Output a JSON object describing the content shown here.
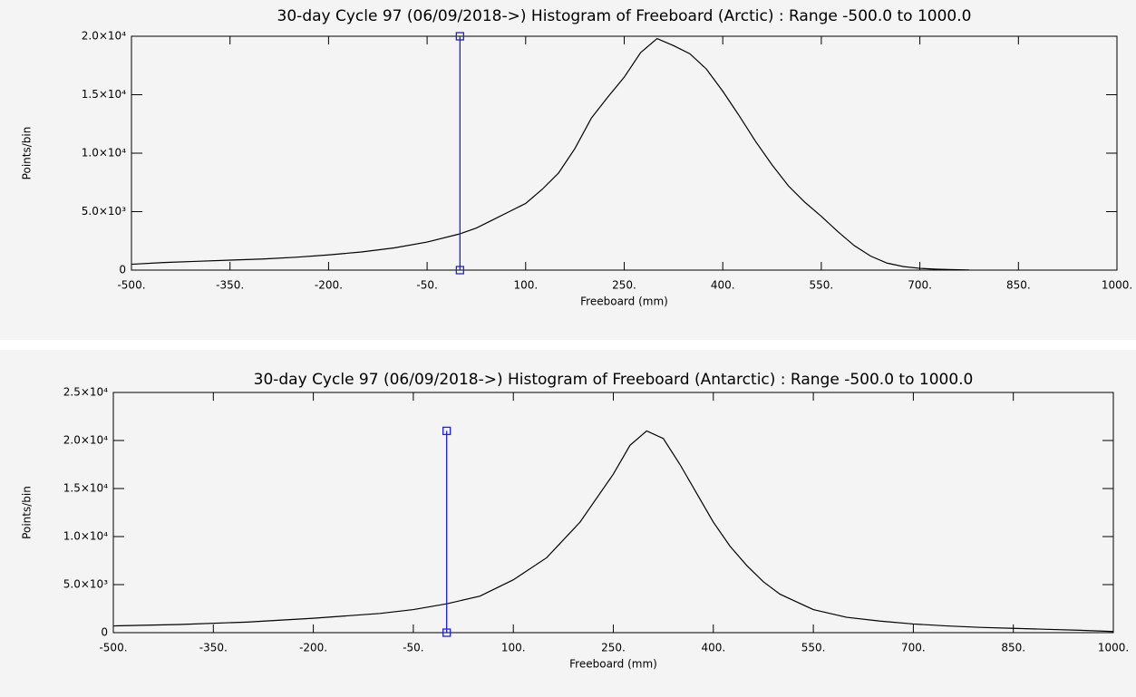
{
  "chart_data": [
    {
      "type": "line",
      "title": "30-day Cycle 97 (06/09/2018->) Histogram of Freeboard (Arctic) :  Range -500.0 to 1000.0",
      "x_label": "Freeboard (mm)",
      "y_label": "Points/bin",
      "x": [
        -500,
        -450,
        -400,
        -350,
        -300,
        -250,
        -200,
        -150,
        -100,
        -50,
        0,
        25,
        50,
        75,
        100,
        125,
        150,
        175,
        200,
        225,
        250,
        275,
        300,
        325,
        350,
        375,
        400,
        425,
        450,
        475,
        500,
        525,
        550,
        575,
        600,
        625,
        650,
        675,
        700,
        725,
        750,
        775
      ],
      "values": [
        500,
        650,
        750,
        850,
        950,
        1100,
        1300,
        1550,
        1900,
        2400,
        3100,
        3600,
        4300,
        5000,
        5700,
        6900,
        8300,
        10400,
        13000,
        14800,
        16500,
        18600,
        19800,
        19200,
        18500,
        17200,
        15300,
        13200,
        11000,
        9000,
        7200,
        5800,
        4600,
        3300,
        2100,
        1200,
        600,
        300,
        150,
        80,
        40,
        15
      ],
      "color": "#000000",
      "xlim": [
        -500,
        1000
      ],
      "xticks": [
        {
          "value": -500,
          "label": "-500."
        },
        {
          "value": -350,
          "label": "-350."
        },
        {
          "value": -200,
          "label": "-200."
        },
        {
          "value": -50,
          "label": "-50."
        },
        {
          "value": 100,
          "label": "100."
        },
        {
          "value": 250,
          "label": "250."
        },
        {
          "value": 400,
          "label": "400."
        },
        {
          "value": 550,
          "label": "550."
        },
        {
          "value": 700,
          "label": "700."
        },
        {
          "value": 850,
          "label": "850."
        },
        {
          "value": 1000,
          "label": "1000."
        }
      ],
      "ylim": [
        0,
        20000
      ],
      "yticks": [
        0,
        {
          "value": 5000,
          "label": "5.0×10³"
        },
        {
          "value": 10000,
          "label": "1.0×10⁴"
        },
        {
          "value": 15000,
          "label": "1.5×10⁴"
        },
        {
          "value": 20000,
          "label": "2.0×10⁴"
        }
      ],
      "marker_x": 0,
      "marker_y": [
        0,
        20000
      ],
      "marker_color": "#2020e0"
    },
    {
      "type": "line",
      "title": "30-day Cycle 97 (06/09/2018->) Histogram of Freeboard (Antarctic) :  Range -500.0 to 1000.0",
      "x_label": "Freeboard (mm)",
      "y_label": "Points/bin",
      "x": [
        -500,
        -400,
        -300,
        -200,
        -100,
        -50,
        0,
        50,
        100,
        150,
        200,
        250,
        275,
        300,
        325,
        350,
        375,
        400,
        425,
        450,
        475,
        500,
        550,
        600,
        650,
        700,
        750,
        800,
        850,
        900,
        950,
        1000
      ],
      "values": [
        700,
        850,
        1100,
        1500,
        2000,
        2400,
        3000,
        3800,
        5500,
        7800,
        11500,
        16500,
        19500,
        21000,
        20200,
        17500,
        14500,
        11500,
        9000,
        7000,
        5300,
        4000,
        2400,
        1600,
        1200,
        900,
        700,
        550,
        450,
        350,
        250,
        120
      ],
      "color": "#000000",
      "xlim": [
        -500,
        1000
      ],
      "xticks": [
        {
          "value": -500,
          "label": "-500."
        },
        {
          "value": -350,
          "label": "-350."
        },
        {
          "value": -200,
          "label": "-200."
        },
        {
          "value": -50,
          "label": "-50."
        },
        {
          "value": 100,
          "label": "100."
        },
        {
          "value": 250,
          "label": "250."
        },
        {
          "value": 400,
          "label": "400."
        },
        {
          "value": 550,
          "label": "550."
        },
        {
          "value": 700,
          "label": "700."
        },
        {
          "value": 850,
          "label": "850."
        },
        {
          "value": 1000,
          "label": "1000."
        }
      ],
      "ylim": [
        0,
        25000
      ],
      "yticks": [
        0,
        {
          "value": 5000,
          "label": "5.0×10³"
        },
        {
          "value": 10000,
          "label": "1.0×10⁴"
        },
        {
          "value": 15000,
          "label": "1.5×10⁴"
        },
        {
          "value": 20000,
          "label": "2.0×10⁴"
        },
        {
          "value": 25000,
          "label": "2.5×10⁴"
        }
      ],
      "marker_x": 0,
      "marker_y": [
        0,
        21000
      ],
      "marker_color": "#2020e0"
    }
  ]
}
